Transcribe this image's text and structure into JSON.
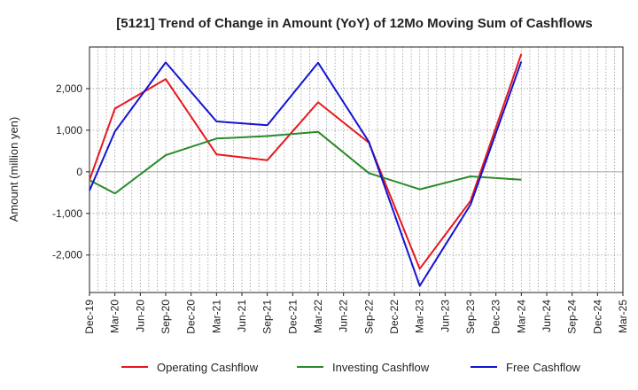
{
  "chart_data": {
    "type": "line",
    "title": "[5121]  Trend of Change in Amount (YoY) of 12Mo Moving Sum of Cashflows",
    "xlabel": "",
    "ylabel": "Amount (million yen)",
    "ylim": [
      -2900,
      3000
    ],
    "yticks": [
      2000,
      1000,
      0,
      -1000,
      -2000
    ],
    "ytick_labels": [
      "2,000",
      "1,000",
      "0",
      "-1,000",
      "-2,000"
    ],
    "categories": [
      "Dec-19",
      "Mar-20",
      "Jun-20",
      "Sep-20",
      "Dec-20",
      "Mar-21",
      "Jun-21",
      "Sep-21",
      "Dec-21",
      "Mar-22",
      "Jun-22",
      "Sep-22",
      "Dec-22",
      "Mar-23",
      "Jun-23",
      "Sep-23",
      "Dec-23",
      "Mar-24",
      "Jun-24",
      "Sep-24",
      "Dec-24",
      "Mar-25"
    ],
    "grid": true,
    "legend_position": "bottom",
    "series": [
      {
        "name": "Operating Cashflow",
        "color": "#e8171c",
        "points": [
          [
            "Dec-19",
            -200
          ],
          [
            "Mar-20",
            1520
          ],
          [
            "Sep-20",
            2230
          ],
          [
            "Mar-21",
            420
          ],
          [
            "Sep-21",
            280
          ],
          [
            "Mar-22",
            1670
          ],
          [
            "Sep-22",
            700
          ],
          [
            "Mar-23",
            -2330
          ],
          [
            "Sep-23",
            -700
          ],
          [
            "Mar-24",
            2830
          ]
        ]
      },
      {
        "name": "Investing Cashflow",
        "color": "#2a8a2a",
        "points": [
          [
            "Dec-19",
            -200
          ],
          [
            "Mar-20",
            -520
          ],
          [
            "Sep-20",
            400
          ],
          [
            "Mar-21",
            800
          ],
          [
            "Sep-21",
            860
          ],
          [
            "Mar-22",
            960
          ],
          [
            "Sep-22",
            -30
          ],
          [
            "Mar-23",
            -420
          ],
          [
            "Sep-23",
            -110
          ],
          [
            "Mar-24",
            -190
          ]
        ]
      },
      {
        "name": "Free Cashflow",
        "color": "#1414d2",
        "points": [
          [
            "Dec-19",
            -450
          ],
          [
            "Mar-20",
            970
          ],
          [
            "Sep-20",
            2630
          ],
          [
            "Mar-21",
            1210
          ],
          [
            "Sep-21",
            1120
          ],
          [
            "Mar-22",
            2620
          ],
          [
            "Sep-22",
            720
          ],
          [
            "Mar-23",
            -2740
          ],
          [
            "Sep-23",
            -790
          ],
          [
            "Mar-24",
            2650
          ]
        ]
      }
    ]
  }
}
